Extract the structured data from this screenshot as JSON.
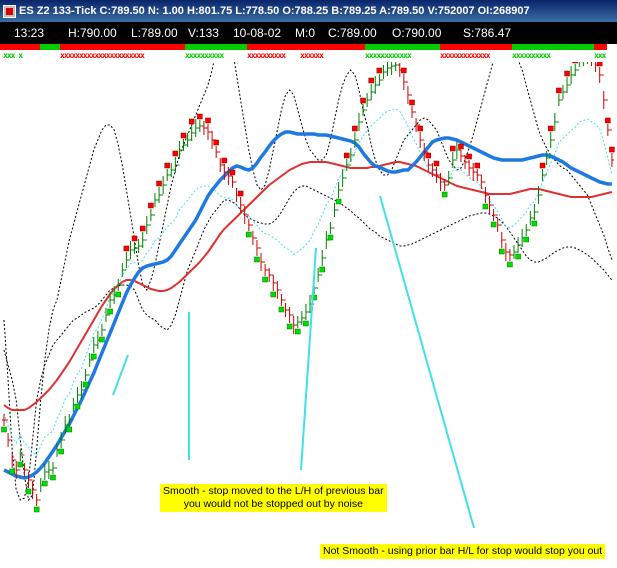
{
  "window": {
    "title": "ES Z2 133-Tick C:789.50 N: 1.00 H:801.75 L:778.50 O:788.25 B:789.25 A:789.50 V:752007 OI:268907"
  },
  "infobar": {
    "time": "13:23",
    "high": "H:790.00",
    "low": "L:789.00",
    "volume": "V:133",
    "date": "10-08-02",
    "m": "M:0",
    "close": "C:789.00",
    "open": "O:790.00",
    "s": "S:786.47"
  },
  "status_marks": [
    {
      "text": "xxx x",
      "color": "#00cc00"
    },
    {
      "text": "xxxxxxxxxxxxxxxxxxxxxx",
      "color": "#ff0000"
    },
    {
      "text": "xxxxxxxxxx",
      "color": "#00cc00"
    },
    {
      "text": "xxxxxxxxxx",
      "color": "#ff0000"
    },
    {
      "text": "xxxxxx",
      "color": "#ff0000"
    },
    {
      "text": "xxxxxxxxxxxx",
      "color": "#00cc00"
    },
    {
      "text": "xxxxxxxxxxxxx",
      "color": "#ff0000"
    },
    {
      "text": "xxxxxxxxxx",
      "color": "#00cc00"
    },
    {
      "text": "xxx",
      "color": "#00cc00"
    }
  ],
  "colors": {
    "background": "#ffffff",
    "up_bar": "#008000",
    "down_bar": "#cc0000",
    "marker_top": "#ff0000",
    "marker_bottom": "#00dd00",
    "smooth_ma": "#1e7ae0",
    "slow_ma": "#e03030",
    "band_outer": "#000000",
    "band_inner": "#40e0e8",
    "annotation_line": "#40e0e8",
    "note_bg": "#ffff00"
  },
  "annotations": {
    "smooth_note_line1": "Smooth - stop moved to the L/H of previous bar",
    "smooth_note_line2": "you would not be stopped out by noise",
    "not_smooth_note": "Not Smooth - using prior bar H/L for stop would stop you out"
  },
  "chart_data": {
    "type": "line",
    "title": "ES Z2 133-Tick",
    "xlabel": "",
    "ylabel": "",
    "grid": false,
    "x": [
      0,
      1,
      2,
      3,
      4,
      5,
      6,
      7,
      8,
      9,
      10,
      11,
      12,
      13,
      14,
      15,
      16,
      17,
      18,
      19,
      20,
      21,
      22,
      23,
      24,
      25,
      26,
      27,
      28,
      29,
      30,
      31,
      32,
      33,
      34,
      35,
      36,
      37,
      38,
      39,
      40,
      41,
      42,
      43,
      44,
      45,
      46,
      47,
      48,
      49,
      50,
      51,
      52,
      53,
      54,
      55,
      56,
      57,
      58,
      59,
      60,
      61,
      62,
      63,
      64,
      65,
      66,
      67,
      68,
      69,
      70,
      71,
      72,
      73,
      74,
      75,
      76,
      77,
      78,
      79,
      80,
      81,
      82,
      83,
      84,
      85,
      86,
      87,
      88,
      89,
      90,
      91,
      92,
      93,
      94,
      95,
      96,
      97,
      98,
      99,
      100,
      101,
      102,
      103,
      104,
      105,
      106,
      107,
      108,
      109,
      110,
      111,
      112,
      113,
      114,
      115,
      116,
      117,
      118,
      119,
      120,
      121,
      122,
      123,
      124,
      125,
      126,
      127,
      128,
      129,
      130,
      131,
      132,
      133,
      134,
      135,
      136,
      137,
      138,
      139,
      140,
      141,
      142,
      143,
      144,
      145,
      146,
      147,
      148,
      149
    ],
    "series": [
      {
        "name": "",
        "role": "price",
        "values": [
          420,
          440,
          460,
          470,
          455,
          470,
          480,
          490,
          500,
          485,
          472,
          470,
          468,
          450,
          440,
          425,
          420,
          405,
          395,
          390,
          375,
          360,
          345,
          340,
          330,
          315,
          300,
          295,
          285,
          270,
          260,
          250,
          248,
          246,
          240,
          225,
          215,
          200,
          195,
          185,
          175,
          170,
          165,
          150,
          145,
          140,
          133,
          128,
          126,
          128,
          132,
          140,
          152,
          165,
          172,
          176,
          182,
          195,
          205,
          215,
          225,
          238,
          248,
          262,
          270,
          275,
          283,
          290,
          300,
          310,
          315,
          325,
          322,
          318,
          312,
          304,
          288,
          275,
          258,
          240,
          228,
          210,
          190,
          178,
          165,
          155,
          140,
          122,
          110,
          100,
          92,
          85,
          80,
          72,
          68,
          66,
          65,
          70,
          82,
          95,
          112,
          125,
          140,
          152,
          165,
          170,
          175,
          182,
          185,
          178,
          160,
          150,
          156,
          162,
          168,
          172,
          175,
          182,
          195,
          205,
          215,
          225,
          240,
          252,
          255,
          252,
          245,
          238,
          230,
          218,
          212,
          195,
          175,
          158,
          140,
          122,
          100,
          92,
          85,
          75,
          70,
          60,
          58,
          55,
          60,
          65,
          75,
          100,
          130,
          160
        ]
      },
      {
        "name": "",
        "role": "smooth_ma",
        "values": [
          470,
          472,
          474,
          476,
          477,
          478,
          477,
          475,
          472,
          468,
          463,
          457,
          451,
          445,
          438,
          431,
          424,
          416,
          408,
          400,
          391,
          382,
          373,
          363,
          353,
          343,
          333,
          323,
          313,
          303,
          293,
          285,
          278,
          272,
          268,
          266,
          265,
          264,
          263,
          262,
          260,
          256,
          250,
          244,
          238,
          232,
          226,
          220,
          212,
          204,
          196,
          190,
          185,
          180,
          176,
          172,
          168,
          166,
          167,
          169,
          170,
          168,
          163,
          157,
          152,
          146,
          141,
          137,
          134,
          132,
          132,
          133,
          134,
          134,
          134,
          134,
          134,
          135,
          135,
          135,
          136,
          137,
          138,
          139,
          140,
          141,
          143,
          147,
          153,
          158,
          163,
          166,
          167,
          169,
          171,
          172,
          172,
          171,
          170,
          170,
          166,
          162,
          157,
          152,
          147,
          142,
          140,
          139,
          138,
          138,
          139,
          140,
          142,
          144,
          146,
          148,
          150,
          152,
          154,
          156,
          158,
          159,
          160,
          160,
          160,
          160,
          160,
          160,
          159,
          158,
          157,
          156,
          155,
          155,
          156,
          158,
          160,
          162,
          165,
          168,
          170,
          172,
          174,
          176,
          178,
          180,
          182,
          183,
          184,
          184
        ]
      },
      {
        "name": "",
        "role": "slow_ma",
        "values": [
          405,
          408,
          410,
          410,
          410,
          410,
          408,
          405,
          402,
          398,
          394,
          390,
          385,
          380,
          374,
          368,
          362,
          355,
          348,
          341,
          334,
          327,
          320,
          313,
          306,
          300,
          294,
          289,
          285,
          282,
          280,
          280,
          281,
          283,
          285,
          287,
          289,
          290,
          291,
          291,
          290,
          288,
          285,
          282,
          278,
          274,
          270,
          266,
          262,
          257,
          252,
          246,
          240,
          234,
          229,
          225,
          221,
          217,
          213,
          209,
          205,
          201,
          197,
          193,
          189,
          185,
          182,
          179,
          176,
          173,
          170,
          168,
          166,
          164,
          163,
          162,
          162,
          162,
          162,
          162,
          163,
          164,
          165,
          166,
          167,
          168,
          168,
          168,
          168,
          168,
          167,
          167,
          166,
          165,
          164,
          163,
          162,
          162,
          163,
          164,
          165,
          166,
          168,
          170,
          172,
          174,
          176,
          178,
          180,
          182,
          184,
          186,
          187,
          188,
          189,
          190,
          191,
          192,
          193,
          194,
          194,
          194,
          194,
          194,
          194,
          193,
          192,
          191,
          190,
          189,
          189,
          189,
          190,
          191,
          192,
          193,
          194,
          195,
          196,
          197,
          197,
          197,
          197,
          197,
          197,
          196,
          195,
          194,
          193,
          192
        ]
      },
      {
        "name": "",
        "role": "band_outer_upper",
        "values": [
          350,
          365,
          380,
          400,
          440,
          475,
          500,
          495,
          450,
          400,
          360,
          330,
          310,
          300,
          280,
          260,
          240,
          225,
          210,
          195,
          180,
          165,
          150,
          140,
          130,
          125,
          125,
          130,
          145,
          165,
          190,
          215,
          240,
          265,
          285,
          290,
          280,
          265,
          245,
          225,
          205,
          185,
          170,
          155,
          145,
          135,
          125,
          115,
          105,
          95,
          85,
          70,
          50,
          35,
          30,
          35,
          50,
          75,
          100,
          125,
          150,
          170,
          185,
          190,
          185,
          170,
          150,
          130,
          110,
          95,
          90,
          95,
          110,
          125,
          140,
          150,
          155,
          160,
          160,
          155,
          140,
          120,
          100,
          85,
          75,
          70,
          75,
          90,
          110,
          125,
          145,
          160,
          170,
          175,
          175,
          170,
          160,
          150,
          140,
          135,
          130,
          125,
          120,
          118,
          120,
          125,
          130,
          140,
          150,
          160,
          165,
          170,
          168,
          160,
          148,
          135,
          120,
          105,
          90,
          75,
          60,
          50,
          45,
          40,
          45,
          50,
          60,
          70,
          85,
          100,
          115,
          130,
          140,
          148,
          155,
          160,
          165,
          168,
          170,
          175,
          180,
          185,
          190,
          195,
          205,
          215,
          225,
          235,
          248,
          260
        ]
      },
      {
        "name": "",
        "role": "band_outer_lower",
        "values": [
          320,
          380,
          450,
          490,
          500,
          498,
          480,
          440,
          400,
          380,
          365,
          355,
          345,
          340,
          335,
          330,
          325,
          320,
          318,
          315,
          312,
          310,
          308,
          305,
          300,
          295,
          290,
          288,
          286,
          285,
          285,
          286,
          290,
          300,
          310,
          315,
          318,
          320,
          325,
          328,
          330,
          325,
          315,
          300,
          285,
          270,
          260,
          250,
          240,
          230,
          222,
          215,
          210,
          205,
          200,
          200,
          202,
          205,
          210,
          215,
          218,
          220,
          222,
          223,
          224,
          224,
          222,
          218,
          212,
          205,
          198,
          192,
          188,
          186,
          186,
          188,
          190,
          192,
          194,
          196,
          198,
          200,
          202,
          205,
          208,
          211,
          215,
          218,
          222,
          226,
          230,
          232,
          236,
          238,
          240,
          242,
          244,
          246,
          246,
          245,
          244,
          242,
          240,
          238,
          236,
          234,
          232,
          230,
          228,
          226,
          224,
          222,
          220,
          218,
          216,
          215,
          214,
          213,
          213,
          214,
          216,
          218,
          222,
          226,
          232,
          238,
          244,
          250,
          256,
          260,
          262,
          262,
          260,
          258,
          255,
          252,
          250,
          248,
          247,
          247,
          248,
          250,
          252,
          255,
          258,
          262,
          266,
          270,
          275,
          280
        ]
      }
    ],
    "annotation_lines": [
      {
        "from": [
          128,
          355
        ],
        "to": [
          113,
          395
        ]
      },
      {
        "from": [
          189,
          460
        ],
        "to": [
          189,
          312
        ]
      },
      {
        "from": [
          301,
          470
        ],
        "to": [
          316,
          248
        ]
      },
      {
        "from": [
          474,
          528
        ],
        "to": [
          380,
          196
        ]
      }
    ]
  }
}
